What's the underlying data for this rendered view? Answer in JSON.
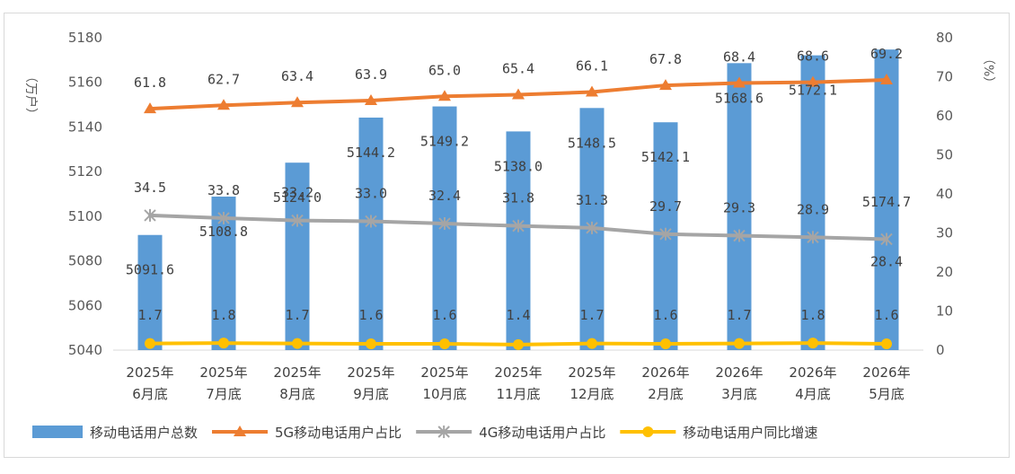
{
  "chart_data": {
    "type": "bar",
    "categories": [
      [
        "2025年",
        "6月底"
      ],
      [
        "2025年",
        "7月底"
      ],
      [
        "2025年",
        "8月底"
      ],
      [
        "2025年",
        "9月底"
      ],
      [
        "2025年",
        "10月底"
      ],
      [
        "2025年",
        "11月底"
      ],
      [
        "2025年",
        "12月底"
      ],
      [
        "2026年",
        "2月底"
      ],
      [
        "2026年",
        "3月底"
      ],
      [
        "2026年",
        "4月底"
      ],
      [
        "2026年",
        "5月底"
      ]
    ],
    "y_left": {
      "label": "（万户）",
      "min": 5040,
      "max": 5180,
      "step": 20
    },
    "y_right": {
      "label": "（%）",
      "min": 0,
      "max": 80,
      "step": 10
    },
    "series": [
      {
        "name": "移动电话用户总数",
        "kind": "bar",
        "axis": "left",
        "color": "#5b9bd5",
        "values": [
          5091.6,
          5108.8,
          5124.0,
          5144.2,
          5149.2,
          5138.0,
          5148.5,
          5142.1,
          5168.6,
          5172.1,
          5174.7
        ],
        "labels": [
          "5091.6",
          "5108.8",
          "5124.0",
          "5144.2",
          "5149.2",
          "5138.0",
          "5148.5",
          "5142.1",
          "5168.6",
          "5172.1",
          "5174.7"
        ]
      },
      {
        "name": "5G移动电话用户占比",
        "kind": "line",
        "axis": "right",
        "color": "#ed7d31",
        "marker": "triangle",
        "values": [
          61.8,
          62.7,
          63.4,
          63.9,
          65.0,
          65.4,
          66.1,
          67.8,
          68.4,
          68.6,
          69.2
        ],
        "labels": [
          "61.8",
          "62.7",
          "63.4",
          "63.9",
          "65.0",
          "65.4",
          "66.1",
          "67.8",
          "68.4",
          "68.6",
          "69.2"
        ]
      },
      {
        "name": "4G移动电话用户占比",
        "kind": "line",
        "axis": "right",
        "color": "#a5a5a5",
        "marker": "star",
        "values": [
          34.5,
          33.8,
          33.2,
          33.0,
          32.4,
          31.8,
          31.3,
          29.7,
          29.3,
          28.9,
          28.4
        ],
        "labels": [
          "34.5",
          "33.8",
          "33.2",
          "33.0",
          "32.4",
          "31.8",
          "31.3",
          "29.7",
          "29.3",
          "28.9",
          "28.4"
        ]
      },
      {
        "name": "移动电话用户同比增速",
        "kind": "line",
        "axis": "right",
        "color": "#ffc000",
        "marker": "circle",
        "values": [
          1.7,
          1.8,
          1.7,
          1.6,
          1.6,
          1.4,
          1.7,
          1.6,
          1.7,
          1.8,
          1.6
        ],
        "labels": [
          "1.7",
          "1.8",
          "1.7",
          "1.6",
          "1.6",
          "1.4",
          "1.7",
          "1.6",
          "1.7",
          "1.8",
          "1.6"
        ]
      }
    ],
    "legend_position": "bottom",
    "grid": false
  }
}
